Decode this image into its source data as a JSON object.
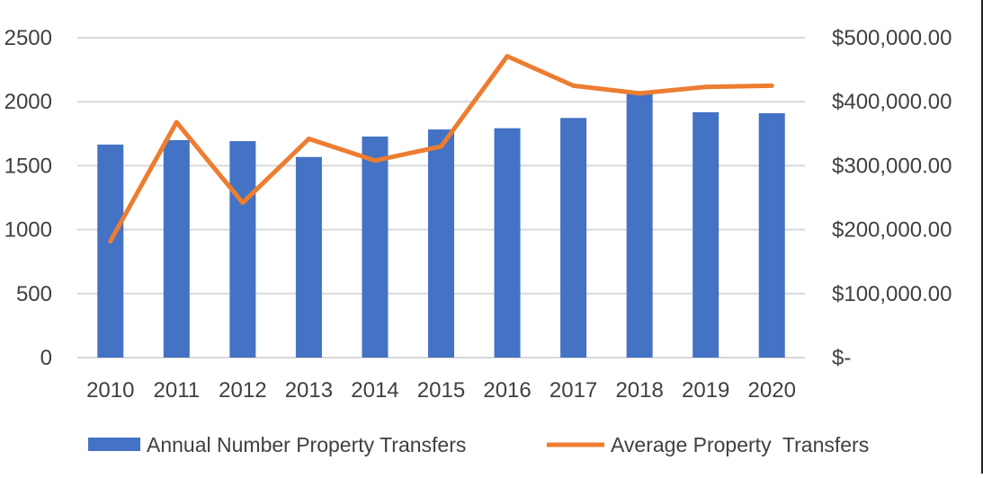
{
  "chart_data": {
    "type": "bar+line",
    "title": "",
    "xlabel": "",
    "ylabel": "",
    "categories": [
      "2010",
      "2011",
      "2012",
      "2013",
      "2014",
      "2015",
      "2016",
      "2017",
      "2018",
      "2019",
      "2020"
    ],
    "series": [
      {
        "name": "Annual Number Property Transfers",
        "type": "bar",
        "axis": "left",
        "color": "#4472C4",
        "values": [
          1665,
          1700,
          1692,
          1568,
          1728,
          1783,
          1793,
          1873,
          2060,
          1918,
          1910
        ]
      },
      {
        "name": "Average Property  Transfers",
        "type": "line",
        "axis": "right",
        "color": "#ED7D31",
        "values": [
          182000,
          368000,
          242000,
          342000,
          308000,
          330000,
          471000,
          425000,
          413000,
          423000,
          425000
        ]
      }
    ],
    "y_left": {
      "min": 0,
      "max": 2500,
      "ticks": [
        0,
        500,
        1000,
        1500,
        2000,
        2500
      ],
      "tick_labels": [
        "0",
        "500",
        "1000",
        "1500",
        "2000",
        "2500"
      ]
    },
    "y_right": {
      "min": 0,
      "max": 500000,
      "ticks": [
        0,
        100000,
        200000,
        300000,
        400000,
        500000
      ],
      "tick_labels": [
        "$-",
        "$100,000.00",
        "$200,000.00",
        "$300,000.00",
        "$400,000.00",
        "$500,000.00"
      ]
    },
    "grid": true,
    "grid_color": "#D9D9D9",
    "legend_position": "bottom"
  }
}
